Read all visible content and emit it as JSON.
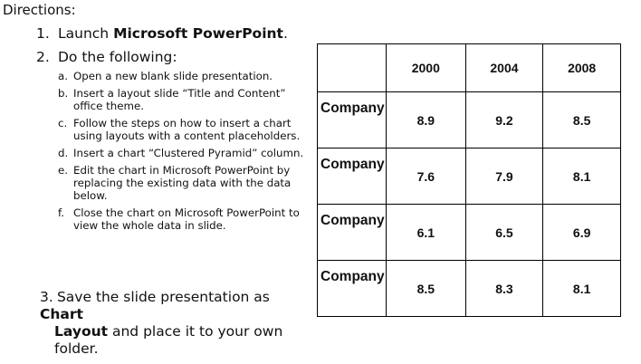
{
  "heading": "Directions:",
  "steps": [
    {
      "num": "1.",
      "prefix": "Launch ",
      "bold": "Microsoft PowerPoint",
      "suffix": "."
    },
    {
      "num": "2.",
      "text": "Do the following:"
    }
  ],
  "substeps": [
    {
      "letter": "a.",
      "text": "Open a new blank slide presentation."
    },
    {
      "letter": "b.",
      "text": "Insert a layout slide “Title and Content” office theme."
    },
    {
      "letter": "c.",
      "text": "Follow the steps on how to insert a chart using layouts with a content placeholders."
    },
    {
      "letter": "d.",
      "text": "Insert a chart “Clustered Pyramid” column."
    },
    {
      "letter": "e.",
      "text": "Edit the chart in Microsoft PowerPoint by replacing the existing data with the data below."
    },
    {
      "letter": "f.",
      "text": "Close the chart on Microsoft PowerPoint to view the whole data in slide."
    }
  ],
  "step3": {
    "num": "3.",
    "prefix": "Save the slide presentation as ",
    "bold1": "Chart",
    "bold2": "Layout",
    "suffix": " and place it to your own folder."
  },
  "table": {
    "headers": [
      "",
      "2000",
      "2004",
      "2008"
    ],
    "rows": [
      {
        "label": "Company",
        "values": [
          "8.9",
          "9.2",
          "8.5"
        ]
      },
      {
        "label": "Company",
        "values": [
          "7.6",
          "7.9",
          "8.1"
        ]
      },
      {
        "label": "Company",
        "values": [
          "6.1",
          "6.5",
          "6.9"
        ]
      },
      {
        "label": "Company",
        "values": [
          "8.5",
          "8.3",
          "8.1"
        ]
      }
    ]
  }
}
